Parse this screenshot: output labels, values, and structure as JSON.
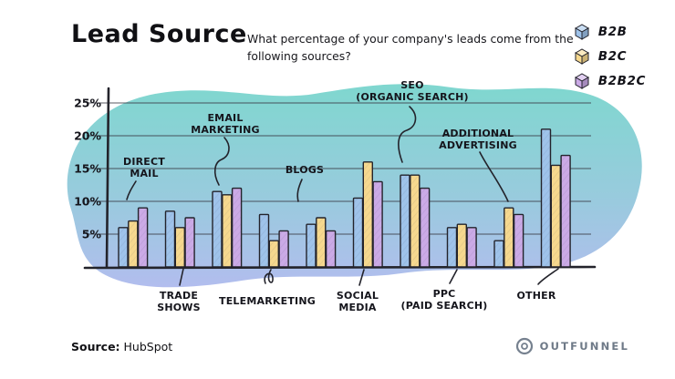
{
  "header": {
    "title": "Lead Source",
    "subtitle_line1": "What percentage of your company's leads come from the",
    "subtitle_line2": "following sources?"
  },
  "legend": [
    {
      "label": "B2B",
      "color": "#9fc3ea"
    },
    {
      "label": "B2C",
      "color": "#f6d88e"
    },
    {
      "label": "B2B2C",
      "color": "#cbaae6"
    }
  ],
  "palette": {
    "blob": [
      "#7fd7cf",
      "#98cbdd",
      "#b2bdee"
    ],
    "outline": "#23232b",
    "grid": "#3b3b46",
    "text": "#15151c"
  },
  "chart_data": {
    "type": "bar",
    "title": "Lead Source",
    "question": "What percentage of your company's leads come from the following sources?",
    "categories": [
      "DIRECT MAIL",
      "TRADE SHOWS",
      "EMAIL MARKETING",
      "TELEMARKETING",
      "BLOGS",
      "SOCIAL MEDIA",
      "SEO (ORGANIC SEARCH)",
      "PPC (PAID SEARCH)",
      "ADDITIONAL ADVERTISING",
      "OTHER"
    ],
    "series": [
      {
        "name": "B2B",
        "color": "#9fc3ea",
        "values": [
          6,
          8.5,
          11.5,
          8,
          6.5,
          10.5,
          14,
          6,
          4,
          21
        ]
      },
      {
        "name": "B2C",
        "color": "#f6d88e",
        "values": [
          7,
          6,
          11,
          4,
          7.5,
          16,
          14,
          6.5,
          9,
          15.5
        ]
      },
      {
        "name": "B2B2C",
        "color": "#cbaae6",
        "values": [
          9,
          7.5,
          12,
          5.5,
          5.5,
          13,
          12,
          6,
          8,
          17
        ]
      }
    ],
    "ylabel": "",
    "y_ticks": [
      "5%",
      "10%",
      "15%",
      "20%",
      "25%"
    ],
    "ylim": [
      0,
      25
    ],
    "grid": true,
    "legend_position": "top-right"
  },
  "footer": {
    "source_label": "Source:",
    "source_value": "HubSpot",
    "brand": "OUTFUNNEL"
  }
}
